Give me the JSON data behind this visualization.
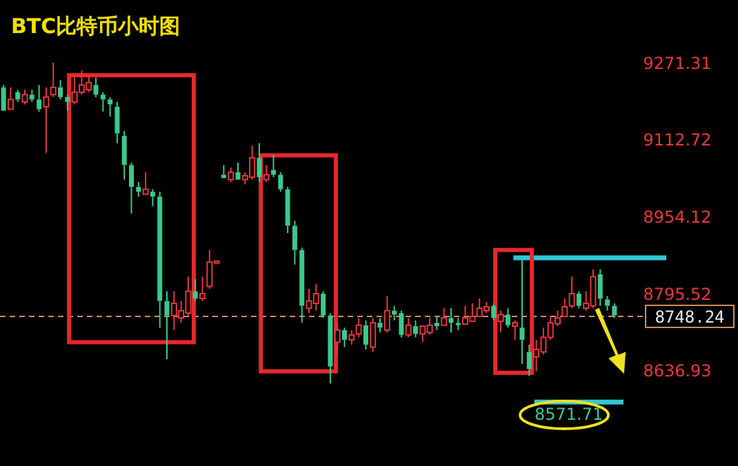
{
  "chart_data": {
    "type": "candlestick",
    "title": "BTC比特币小时图",
    "categories": [
      null,
      null,
      null,
      null,
      null,
      null,
      null,
      null,
      null,
      null,
      null,
      null,
      null,
      null,
      null,
      null,
      null,
      null,
      null,
      null,
      null,
      null,
      null,
      null,
      null,
      null,
      null,
      null,
      null,
      null,
      null,
      null,
      null,
      null,
      null,
      null,
      null,
      null,
      null,
      null,
      null,
      null,
      null,
      null,
      null,
      null,
      null,
      null,
      null,
      null,
      null,
      null,
      null,
      null,
      null,
      null,
      null,
      null,
      null,
      null,
      null,
      null,
      null,
      null,
      null,
      null,
      null,
      null,
      null,
      null,
      null,
      null,
      null,
      null,
      null,
      null,
      null,
      null,
      null,
      null,
      null,
      null,
      null,
      null,
      null,
      null,
      null
    ],
    "ohlc": [
      [
        9220,
        9225,
        9172,
        9172
      ],
      [
        9175,
        9220,
        9172,
        9195
      ],
      [
        9210,
        9215,
        9190,
        9195
      ],
      [
        9190,
        9215,
        9185,
        9205
      ],
      [
        9205,
        9215,
        9190,
        9195
      ],
      [
        9195,
        9225,
        9170,
        9175
      ],
      [
        9180,
        9220,
        9085,
        9200
      ],
      [
        9205,
        9271,
        9200,
        9220
      ],
      [
        9220,
        9235,
        9195,
        9200
      ],
      [
        9200,
        9205,
        9172,
        9190
      ],
      [
        9190,
        9240,
        9185,
        9210
      ],
      [
        9210,
        9255,
        9205,
        9225
      ],
      [
        9215,
        9245,
        9210,
        9230
      ],
      [
        9225,
        9240,
        9200,
        9205
      ],
      [
        9205,
        9210,
        9170,
        9195
      ],
      [
        9195,
        9200,
        9160,
        9185
      ],
      [
        9180,
        9190,
        9105,
        9125
      ],
      [
        9120,
        9130,
        9030,
        9060
      ],
      [
        9060,
        9065,
        8960,
        9015
      ],
      [
        9015,
        9025,
        8995,
        9005
      ],
      [
        9000,
        9045,
        8998,
        9010
      ],
      [
        9005,
        9010,
        8975,
        8995
      ],
      [
        8995,
        9005,
        8725,
        8780
      ],
      [
        8780,
        8800,
        8660,
        8750
      ],
      [
        8750,
        8800,
        8720,
        8775
      ],
      [
        8745,
        8780,
        8735,
        8760
      ],
      [
        8755,
        8830,
        8750,
        8800
      ],
      [
        8800,
        8825,
        8780,
        8785
      ],
      [
        8785,
        8830,
        8780,
        8795
      ],
      [
        8810,
        8885,
        8805,
        8860
      ],
      [
        8858,
        8862,
        8858,
        8862
      ],
      [
        9040,
        9060,
        9030,
        9033
      ],
      [
        9030,
        9055,
        9025,
        9045
      ],
      [
        9045,
        9065,
        9028,
        9030
      ],
      [
        9030,
        9045,
        9020,
        9038
      ],
      [
        9035,
        9100,
        9030,
        9075
      ],
      [
        9075,
        9105,
        9025,
        9035
      ],
      [
        9030,
        9060,
        9025,
        9040
      ],
      [
        9050,
        9080,
        9035,
        9040
      ],
      [
        9040,
        9045,
        9005,
        9010
      ],
      [
        9010,
        9015,
        8920,
        8935
      ],
      [
        8935,
        8945,
        8855,
        8885
      ],
      [
        8885,
        8890,
        8735,
        8770
      ],
      [
        8765,
        8805,
        8755,
        8780
      ],
      [
        8775,
        8815,
        8760,
        8795
      ],
      [
        8795,
        8800,
        8745,
        8750
      ],
      [
        8750,
        8755,
        8610,
        8645
      ],
      [
        8695,
        8735,
        8670,
        8720
      ],
      [
        8720,
        8725,
        8685,
        8700
      ],
      [
        8700,
        8720,
        8690,
        8710
      ],
      [
        8712,
        8745,
        8705,
        8730
      ],
      [
        8730,
        8740,
        8680,
        8690
      ],
      [
        8685,
        8745,
        8675,
        8735
      ],
      [
        8735,
        8745,
        8715,
        8725
      ],
      [
        8720,
        8790,
        8715,
        8760
      ],
      [
        8760,
        8770,
        8740,
        8752
      ],
      [
        8755,
        8760,
        8705,
        8710
      ],
      [
        8710,
        8745,
        8705,
        8730
      ],
      [
        8728,
        8740,
        8705,
        8712
      ],
      [
        8712,
        8730,
        8695,
        8728
      ],
      [
        8715,
        8745,
        8710,
        8730
      ],
      [
        8735,
        8748,
        8720,
        8728
      ],
      [
        8730,
        8765,
        8730,
        8745
      ],
      [
        8745,
        8765,
        8715,
        8735
      ],
      [
        8735,
        8745,
        8720,
        8730
      ],
      [
        8732,
        8770,
        8728,
        8745
      ],
      [
        8738,
        8775,
        8735,
        8748
      ],
      [
        8748,
        8785,
        8745,
        8765
      ],
      [
        8760,
        8778,
        8755,
        8768
      ],
      [
        8770,
        8775,
        8740,
        8745
      ],
      [
        8738,
        8760,
        8715,
        8752
      ],
      [
        8752,
        8765,
        8725,
        8730
      ],
      [
        8728,
        8740,
        8700,
        8735
      ],
      [
        8725,
        8866,
        8650,
        8700
      ],
      [
        8675,
        8690,
        8625,
        8640
      ],
      [
        8665,
        8700,
        8635,
        8680
      ],
      [
        8675,
        8725,
        8670,
        8705
      ],
      [
        8705,
        8750,
        8700,
        8735
      ],
      [
        8733,
        8760,
        8728,
        8745
      ],
      [
        8748,
        8785,
        8745,
        8768
      ],
      [
        8770,
        8830,
        8765,
        8795
      ],
      [
        8795,
        8800,
        8765,
        8770
      ],
      [
        8765,
        8800,
        8760,
        8775
      ],
      [
        8770,
        8845,
        8765,
        8830
      ],
      [
        8835,
        8845,
        8770,
        8785
      ],
      [
        8783,
        8790,
        8760,
        8770
      ],
      [
        8770,
        8775,
        8745,
        8750
      ]
    ],
    "colors": [
      "#3cc88c",
      "#e8383c",
      "#3cc88c",
      "#e8383c",
      "#3cc88c",
      "#3cc88c",
      "#e8383c",
      "#e8383c",
      "#3cc88c",
      "#3cc88c",
      "#e8383c",
      "#e8383c",
      "#e8383c",
      "#3cc88c",
      "#3cc88c",
      "#3cc88c",
      "#3cc88c",
      "#3cc88c",
      "#3cc88c",
      "#3cc88c",
      "#e8383c",
      "#3cc88c",
      "#3cc88c",
      "#3cc88c",
      "#e8383c",
      "#e8383c",
      "#e8383c",
      "#3cc88c",
      "#e8383c",
      "#e8383c",
      "#e8383c",
      "#3cc88c",
      "#e8383c",
      "#3cc88c",
      "#e8383c",
      "#e8383c",
      "#3cc88c",
      "#e8383c",
      "#3cc88c",
      "#3cc88c",
      "#3cc88c",
      "#3cc88c",
      "#3cc88c",
      "#e8383c",
      "#e8383c",
      "#3cc88c",
      "#3cc88c",
      "#e8383c",
      "#3cc88c",
      "#e8383c",
      "#e8383c",
      "#3cc88c",
      "#e8383c",
      "#3cc88c",
      "#e8383c",
      "#3cc88c",
      "#3cc88c",
      "#e8383c",
      "#3cc88c",
      "#e8383c",
      "#e8383c",
      "#3cc88c",
      "#e8383c",
      "#3cc88c",
      "#3cc88c",
      "#e8383c",
      "#e8383c",
      "#e8383c",
      "#e8383c",
      "#3cc88c",
      "#e8383c",
      "#3cc88c",
      "#e8383c",
      "#3cc88c",
      "#3cc88c",
      "#e8383c",
      "#e8383c",
      "#e8383c",
      "#e8383c",
      "#e8383c",
      "#e8383c",
      "#3cc88c",
      "#e8383c",
      "#e8383c",
      "#3cc88c",
      "#3cc88c",
      "#3cc88c"
    ],
    "ylim": [
      8440,
      9400
    ],
    "yticks": [
      9271.31,
      9112.72,
      8954.12,
      8795.52,
      8636.93
    ],
    "ref_lines": [
      {
        "axis": "y",
        "value": 8748.24,
        "label": "8748.24",
        "color": "#d09060",
        "line_style": "dashed"
      },
      {
        "axis": "y",
        "value": 8869,
        "color": "#30c8d8",
        "line_style": "solid"
      },
      {
        "axis": "y",
        "value": 8571.71,
        "label": "8571.71",
        "color": "#30c8d8",
        "line_style": "solid"
      }
    ],
    "grid": false
  }
}
